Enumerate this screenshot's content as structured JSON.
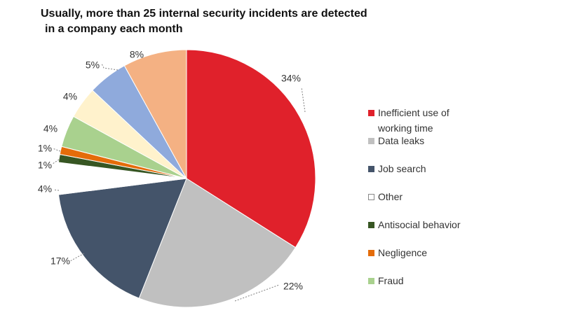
{
  "chart_data": {
    "type": "pie",
    "title": "Usually, more than 25 internal security incidents are detected",
    "title_line2": "in a company each month",
    "start_angle_deg": 0,
    "direction": "clockwise",
    "legend_position": "right",
    "slices": [
      {
        "label": "Inefficient use of working time",
        "legend_line1": "Inefficient use of",
        "legend_line2": "working time",
        "value": 34,
        "value_label": "34%",
        "color": "#e0212b",
        "in_legend": true
      },
      {
        "label": "Data leaks",
        "value": 22,
        "value_label": "22%",
        "color": "#c0c0c0",
        "in_legend": true
      },
      {
        "label": "Job search",
        "value": 17,
        "value_label": "17%",
        "color": "#44546a",
        "in_legend": true
      },
      {
        "label": "Other",
        "value": 4,
        "value_label": "4%",
        "color": "#ffffff",
        "in_legend": true
      },
      {
        "label": "Antisocial behavior",
        "value": 1,
        "value_label": "1%",
        "color": "#375623",
        "in_legend": true
      },
      {
        "label": "Negligence",
        "value": 1,
        "value_label": "1%",
        "color": "#e46c0a",
        "in_legend": true
      },
      {
        "label": "Fraud",
        "value": 4,
        "value_label": "4%",
        "color": "#a9d18e",
        "in_legend": true
      },
      {
        "label": "",
        "value": 4,
        "value_label": "4%",
        "color": "#fff2cc",
        "in_legend": false
      },
      {
        "label": "",
        "value": 5,
        "value_label": "5%",
        "color": "#8faadc",
        "in_legend": false
      },
      {
        "label": "",
        "value": 8,
        "value_label": "8%",
        "color": "#f4b183",
        "in_legend": false
      }
    ]
  }
}
